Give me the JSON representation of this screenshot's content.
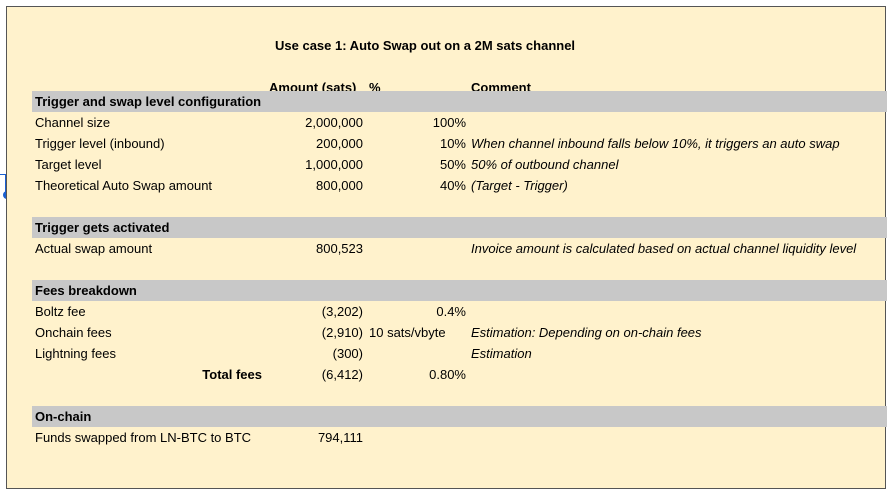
{
  "title": "Use case 1: Auto Swap out on a 2M sats channel",
  "headers": {
    "amount": "Amount (sats)",
    "pct": "%",
    "comment": "Comment"
  },
  "sections": {
    "trigger_config": {
      "label": "Trigger and swap level configuration",
      "rows": [
        {
          "label": "Channel size",
          "amount": "2,000,000",
          "pct": "100%",
          "comment": ""
        },
        {
          "label": "Trigger level (inbound)",
          "amount": "200,000",
          "pct": "10%",
          "comment": "When channel inbound falls below 10%, it triggers an auto swap"
        },
        {
          "label": "Target level",
          "amount": "1,000,000",
          "pct": "50%",
          "comment": "50% of outbound channel"
        },
        {
          "label": "Theoretical Auto Swap amount",
          "amount": "800,000",
          "pct": "40%",
          "comment": "(Target - Trigger)"
        }
      ]
    },
    "trigger_activated": {
      "label": "Trigger gets activated",
      "rows": [
        {
          "label": "Actual swap amount",
          "amount": "800,523",
          "pct": "",
          "comment": "Invoice amount is calculated based on actual channel liquidity level"
        }
      ]
    },
    "fees": {
      "label": "Fees breakdown",
      "rows": [
        {
          "label": "Boltz fee",
          "amount": "(3,202)",
          "pct": "0.4%",
          "comment": ""
        },
        {
          "label": "Onchain fees",
          "amount": "(2,910)",
          "pct": "10 sats/vbyte",
          "comment": "Estimation: Depending on on-chain fees"
        },
        {
          "label": "Lightning fees",
          "amount": "(300)",
          "pct": "",
          "comment": "Estimation"
        }
      ],
      "total": {
        "label": "Total fees",
        "amount": "(6,412)",
        "pct": "0.80%"
      }
    },
    "onchain": {
      "label": "On-chain",
      "rows": [
        {
          "label": "Funds swapped from LN-BTC to BTC",
          "amount": "794,111"
        }
      ]
    }
  }
}
